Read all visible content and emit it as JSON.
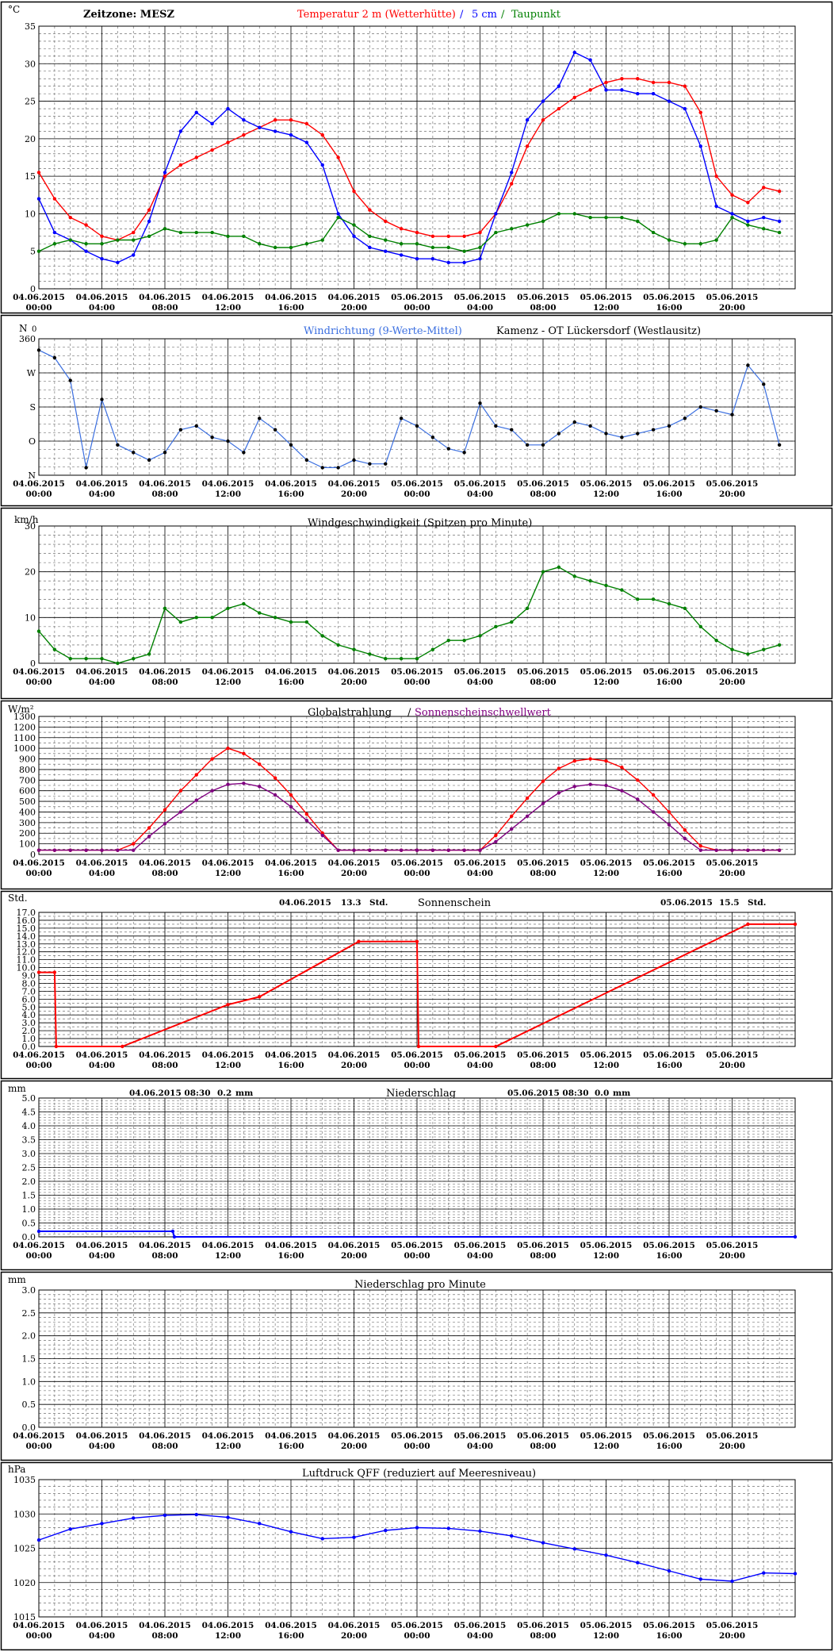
{
  "header": {
    "zeitzone": "Zeitzone: MESZ",
    "temp_label": "Temperatur 2 m (Wetterhütte)",
    "sep": "/",
    "soil_label": "5 cm",
    "dew_label": "Taupunkt",
    "station": "Kamenz - OT Lückersdorf (Westlausitz)"
  },
  "x_axis": {
    "dates": [
      "04.06.2015",
      "04.06.2015",
      "04.06.2015",
      "04.06.2015",
      "04.06.2015",
      "04.06.2015",
      "05.06.2015",
      "05.06.2015",
      "05.06.2015",
      "05.06.2015",
      "05.06.2015",
      "05.06.2015"
    ],
    "times": [
      "00:00",
      "04:00",
      "08:00",
      "12:00",
      "16:00",
      "20:00",
      "00:00",
      "04:00",
      "08:00",
      "12:00",
      "16:00",
      "20:00"
    ]
  },
  "colors": {
    "temperature": "#ff0000",
    "soil_5cm": "#0000ff",
    "dewpoint": "#008000",
    "wind_dir": "#3b6fe0",
    "wind_dir_mean": "#000000",
    "wind_speed": "#008000",
    "global_radiation": "#ff0000",
    "sunshine_threshold": "#800080",
    "sunshine": "#ff0000",
    "precip": "#0000ff",
    "pressure": "#0000ff"
  },
  "chart_data": [
    {
      "id": "temperature",
      "type": "line",
      "unit": "°C",
      "ylim": [
        0,
        35
      ],
      "yticks": [
        0,
        5,
        10,
        15,
        20,
        25,
        30,
        35
      ],
      "x_hours": [
        0,
        1,
        2,
        3,
        4,
        5,
        6,
        7,
        8,
        9,
        10,
        11,
        12,
        13,
        14,
        15,
        16,
        17,
        18,
        19,
        20,
        21,
        22,
        23,
        24,
        25,
        26,
        27,
        28,
        29,
        30,
        31,
        32,
        33,
        34,
        35,
        36,
        37,
        38,
        39,
        40,
        41,
        42,
        43,
        44,
        45,
        46,
        47
      ],
      "series": [
        {
          "name": "Temperatur 2 m (Wetterhütte)",
          "values": [
            15.5,
            12.0,
            9.5,
            8.5,
            7.0,
            6.5,
            7.5,
            10.5,
            15.0,
            16.5,
            17.5,
            18.5,
            19.5,
            20.5,
            21.5,
            22.5,
            22.5,
            22.0,
            20.5,
            17.5,
            13.0,
            10.5,
            9.0,
            8.0,
            7.5,
            7.0,
            7.0,
            7.0,
            7.5,
            10.0,
            14.0,
            19.0,
            22.5,
            24.0,
            25.5,
            26.5,
            27.5,
            28.0,
            28.0,
            27.5,
            27.5,
            27.0,
            23.5,
            15.0,
            12.5,
            11.5,
            13.5,
            13.0
          ]
        },
        {
          "name": "5 cm",
          "values": [
            12.0,
            7.5,
            6.5,
            5.0,
            4.0,
            3.5,
            4.5,
            9.0,
            15.5,
            21.0,
            23.5,
            22.0,
            24.0,
            22.5,
            21.5,
            21.0,
            20.5,
            19.5,
            16.5,
            10.0,
            7.0,
            5.5,
            5.0,
            4.5,
            4.0,
            4.0,
            3.5,
            3.5,
            4.0,
            10.0,
            15.5,
            22.5,
            25.0,
            27.0,
            31.5,
            30.5,
            26.5,
            26.5,
            26.0,
            26.0,
            25.0,
            24.0,
            19.0,
            11.0,
            10.0,
            9.0,
            9.5,
            9.0
          ]
        },
        {
          "name": "Taupunkt",
          "values": [
            5.0,
            6.0,
            6.5,
            6.0,
            6.0,
            6.5,
            6.5,
            7.0,
            8.0,
            7.5,
            7.5,
            7.5,
            7.0,
            7.0,
            6.0,
            5.5,
            5.5,
            6.0,
            6.5,
            9.5,
            8.5,
            7.0,
            6.5,
            6.0,
            6.0,
            5.5,
            5.5,
            5.0,
            5.5,
            7.5,
            8.0,
            8.5,
            9.0,
            10.0,
            10.0,
            9.5,
            9.5,
            9.5,
            9.0,
            7.5,
            6.5,
            6.0,
            6.0,
            6.5,
            9.5,
            8.5,
            8.0,
            7.5
          ]
        }
      ]
    },
    {
      "id": "wind_direction",
      "type": "scatter",
      "title": "Windrichtung (9-Werte-Mittel)",
      "unit": "N",
      "ylim": [
        0,
        360
      ],
      "ytick_values": [
        0,
        90,
        180,
        270,
        360
      ],
      "ytick_labels": [
        "N",
        "O",
        "S",
        "W",
        "360"
      ],
      "extra_label": "0",
      "x_hours": [
        0,
        1,
        2,
        3,
        4,
        5,
        6,
        7,
        8,
        9,
        10,
        11,
        12,
        13,
        14,
        15,
        16,
        17,
        18,
        19,
        20,
        21,
        22,
        23,
        24,
        25,
        26,
        27,
        28,
        29,
        30,
        31,
        32,
        33,
        34,
        35,
        36,
        37,
        38,
        39,
        40,
        41,
        42,
        43,
        44,
        45,
        46,
        47
      ],
      "values": [
        330,
        310,
        250,
        20,
        200,
        80,
        60,
        40,
        60,
        120,
        130,
        100,
        90,
        60,
        150,
        120,
        80,
        40,
        20,
        20,
        40,
        30,
        30,
        150,
        130,
        100,
        70,
        60,
        190,
        130,
        120,
        80,
        80,
        110,
        140,
        130,
        110,
        100,
        110,
        120,
        130,
        150,
        180,
        170,
        160,
        290,
        240,
        80
      ]
    },
    {
      "id": "wind_speed",
      "type": "line",
      "title": "Windgeschwindigkeit (Spitzen pro Minute)",
      "unit": "km/h",
      "ylim": [
        0,
        30
      ],
      "yticks": [
        0,
        10,
        20,
        30
      ],
      "x_hours": [
        0,
        1,
        2,
        3,
        4,
        5,
        6,
        7,
        8,
        9,
        10,
        11,
        12,
        13,
        14,
        15,
        16,
        17,
        18,
        19,
        20,
        21,
        22,
        23,
        24,
        25,
        26,
        27,
        28,
        29,
        30,
        31,
        32,
        33,
        34,
        35,
        36,
        37,
        38,
        39,
        40,
        41,
        42,
        43,
        44,
        45,
        46,
        47
      ],
      "values": [
        7,
        3,
        1,
        1,
        1,
        0,
        1,
        2,
        12,
        9,
        10,
        10,
        12,
        13,
        11,
        10,
        9,
        9,
        6,
        4,
        3,
        2,
        1,
        1,
        1,
        3,
        5,
        5,
        6,
        8,
        9,
        12,
        20,
        21,
        19,
        18,
        17,
        16,
        14,
        14,
        13,
        12,
        8,
        5,
        3,
        2,
        3,
        4
      ]
    },
    {
      "id": "global_radiation",
      "type": "line",
      "title": "Globalstrahlung",
      "title_sep": "/",
      "title2": "Sonnenscheinschwellwert",
      "unit": "W/m²",
      "ylim": [
        0,
        1300
      ],
      "yticks": [
        0,
        100,
        200,
        300,
        400,
        500,
        600,
        700,
        800,
        900,
        1000,
        1100,
        1200,
        1300
      ],
      "x_hours": [
        0,
        1,
        2,
        3,
        4,
        5,
        6,
        7,
        8,
        9,
        10,
        11,
        12,
        13,
        14,
        15,
        16,
        17,
        18,
        19,
        20,
        21,
        22,
        23,
        24,
        25,
        26,
        27,
        28,
        29,
        30,
        31,
        32,
        33,
        34,
        35,
        36,
        37,
        38,
        39,
        40,
        41,
        42,
        43,
        44,
        45,
        46,
        47
      ],
      "series": [
        {
          "name": "Globalstrahlung",
          "values": [
            40,
            40,
            40,
            40,
            40,
            40,
            100,
            250,
            420,
            600,
            750,
            900,
            1000,
            950,
            850,
            720,
            560,
            380,
            200,
            40,
            40,
            40,
            40,
            40,
            40,
            40,
            40,
            40,
            40,
            180,
            360,
            530,
            690,
            810,
            880,
            900,
            880,
            820,
            700,
            560,
            400,
            230,
            80,
            40,
            40,
            40,
            40,
            40
          ]
        },
        {
          "name": "Sonnenscheinschwellwert",
          "values": [
            40,
            40,
            40,
            40,
            40,
            40,
            40,
            170,
            290,
            400,
            510,
            600,
            660,
            670,
            640,
            560,
            450,
            320,
            180,
            40,
            40,
            40,
            40,
            40,
            40,
            40,
            40,
            40,
            40,
            120,
            240,
            360,
            480,
            580,
            640,
            660,
            650,
            600,
            520,
            400,
            280,
            150,
            40,
            40,
            40,
            40,
            40,
            40
          ]
        }
      ]
    },
    {
      "id": "sunshine",
      "type": "line",
      "title": "Sonnenschein",
      "unit": "Std.",
      "day1": {
        "date": "04.06.2015",
        "value": "13.3",
        "unit": "Std."
      },
      "day2": {
        "date": "05.06.2015",
        "value": "15.5",
        "unit": "Std."
      },
      "ylim": [
        0,
        17
      ],
      "yticks": [
        0,
        1,
        2,
        3,
        4,
        5,
        6,
        7,
        8,
        9,
        10,
        11,
        12,
        13,
        14,
        15,
        16,
        17
      ],
      "x_hours": [
        0,
        1,
        1.1,
        5.3,
        12,
        14,
        20.3,
        24,
        24.1,
        29,
        45,
        48
      ],
      "values": [
        9.4,
        9.4,
        0,
        0,
        5.3,
        6.3,
        13.3,
        13.3,
        0,
        0,
        15.5,
        15.5
      ]
    },
    {
      "id": "precipitation",
      "type": "line",
      "title": "Niederschlag",
      "unit": "mm",
      "day1": {
        "date": "04.06.2015 08:30",
        "value": "0.2",
        "unit": "mm"
      },
      "day2": {
        "date": "05.06.2015 08:30",
        "value": "0.0",
        "unit": "mm"
      },
      "ylim": [
        0,
        5
      ],
      "yticks": [
        0,
        0.5,
        1,
        1.5,
        2,
        2.5,
        3,
        3.5,
        4,
        4.5,
        5
      ],
      "x_hours": [
        0,
        8.5,
        8.6,
        48
      ],
      "values": [
        0.2,
        0.2,
        0,
        0
      ]
    },
    {
      "id": "precipitation_minute",
      "type": "bar",
      "title": "Niederschlag pro Minute",
      "unit": "mm",
      "ylim": [
        0,
        3
      ],
      "yticks": [
        0,
        0.5,
        1,
        1.5,
        2,
        2.5,
        3
      ],
      "x_hours": [],
      "values": []
    },
    {
      "id": "pressure",
      "type": "line",
      "title": "Luftdruck QFF (reduziert auf Meeresniveau)",
      "unit": "hPa",
      "ylim": [
        1015,
        1035
      ],
      "yticks": [
        1015,
        1020,
        1025,
        1030,
        1035
      ],
      "x_hours": [
        0,
        2,
        4,
        6,
        8,
        10,
        12,
        14,
        16,
        18,
        20,
        22,
        24,
        26,
        28,
        30,
        32,
        34,
        36,
        38,
        40,
        42,
        44,
        46,
        48
      ],
      "values": [
        1026.2,
        1027.8,
        1028.6,
        1029.4,
        1029.8,
        1029.9,
        1029.5,
        1028.6,
        1027.4,
        1026.4,
        1026.6,
        1027.6,
        1028.0,
        1027.9,
        1027.5,
        1026.8,
        1025.8,
        1024.9,
        1024.0,
        1022.9,
        1021.7,
        1020.5,
        1020.2,
        1021.4,
        1021.3
      ]
    }
  ]
}
